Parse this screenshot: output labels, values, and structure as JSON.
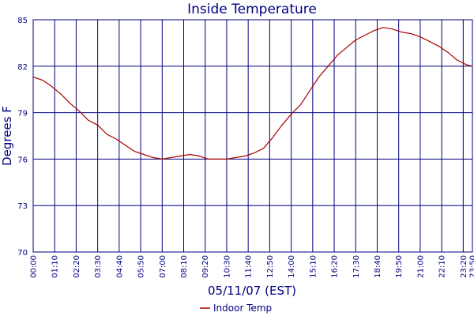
{
  "chart_data": {
    "type": "line",
    "title": "Inside Temperature",
    "xlabel": "05/11/07 (EST)",
    "ylabel": "Degrees F",
    "ylim": [
      70,
      85
    ],
    "yticks": [
      70,
      73,
      76,
      79,
      82,
      85
    ],
    "xlim_minutes": [
      0,
      1430
    ],
    "xticks": [
      "00:00",
      "01:10",
      "02:20",
      "03:30",
      "04:40",
      "05:50",
      "07:00",
      "08:10",
      "09:20",
      "10:30",
      "11:40",
      "12:50",
      "14:00",
      "15:10",
      "16:20",
      "17:30",
      "18:40",
      "19:50",
      "21:00",
      "22:10",
      "23:20",
      "23:50"
    ],
    "grid": true,
    "legend_position": "bottom",
    "colors": {
      "grid": "#000080",
      "series": "#aa0000",
      "text": "#000080"
    },
    "series": [
      {
        "name": "Indoor Temp",
        "x": [
          "00:00",
          "00:30",
          "01:00",
          "01:30",
          "02:00",
          "02:30",
          "03:00",
          "03:30",
          "04:00",
          "04:30",
          "05:00",
          "05:30",
          "06:00",
          "06:30",
          "07:00",
          "07:30",
          "08:00",
          "08:30",
          "09:00",
          "09:30",
          "10:00",
          "10:30",
          "11:00",
          "11:30",
          "12:00",
          "12:30",
          "13:00",
          "13:30",
          "14:00",
          "14:30",
          "15:00",
          "15:30",
          "16:00",
          "16:30",
          "17:00",
          "17:30",
          "18:00",
          "18:30",
          "19:00",
          "19:30",
          "20:00",
          "20:30",
          "21:00",
          "21:30",
          "22:00",
          "22:30",
          "23:00",
          "23:30",
          "23:50"
        ],
        "values": [
          81.3,
          81.1,
          80.7,
          80.2,
          79.6,
          79.1,
          78.5,
          78.2,
          77.6,
          77.3,
          76.9,
          76.5,
          76.3,
          76.1,
          76.0,
          76.1,
          76.2,
          76.3,
          76.2,
          76.0,
          76.0,
          76.0,
          76.1,
          76.2,
          76.4,
          76.7,
          77.4,
          78.2,
          78.9,
          79.5,
          80.4,
          81.3,
          82.0,
          82.7,
          83.2,
          83.7,
          84.0,
          84.3,
          84.5,
          84.4,
          84.2,
          84.1,
          83.9,
          83.6,
          83.3,
          82.9,
          82.4,
          82.1,
          82.0
        ]
      }
    ]
  }
}
